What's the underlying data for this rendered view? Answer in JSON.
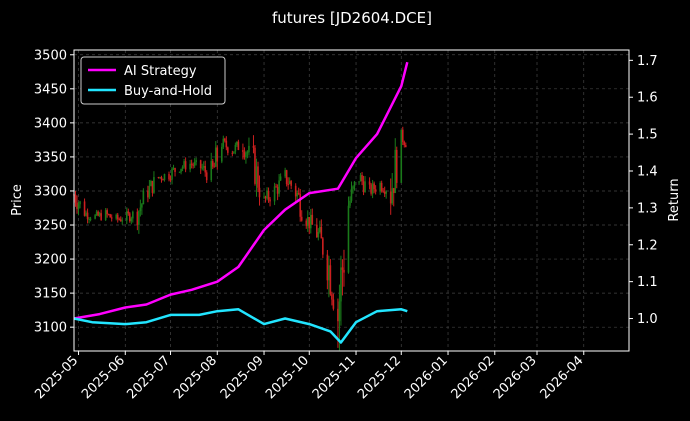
{
  "chart_data": {
    "type": "line",
    "title": "futures [JD2604.DCE]",
    "ylabel_left": "Price",
    "ylabel_right": "Return",
    "xlim": [
      "2025-04-28",
      "2026-05-01"
    ],
    "ylim_left": [
      3065,
      3507
    ],
    "ylim_right": [
      0.912,
      1.728
    ],
    "x_ticks": [
      "2025-05",
      "2025-06",
      "2025-07",
      "2025-08",
      "2025-09",
      "2025-10",
      "2025-11",
      "2025-12",
      "2026-01",
      "2026-02",
      "2026-03",
      "2026-04"
    ],
    "x_tick_dates": [
      "2025-05-01",
      "2025-06-01",
      "2025-07-01",
      "2025-08-01",
      "2025-09-01",
      "2025-10-01",
      "2025-11-01",
      "2025-12-01",
      "2026-01-01",
      "2026-02-01",
      "2026-03-01",
      "2026-04-01"
    ],
    "y_ticks_left": [
      3100,
      3150,
      3200,
      3250,
      3300,
      3350,
      3400,
      3450,
      3500
    ],
    "y_ticks_right": [
      1.0,
      1.1,
      1.2,
      1.3,
      1.4,
      1.5,
      1.6,
      1.7
    ],
    "grid": true,
    "legend_position": "top-left",
    "colors": {
      "background": "#000000",
      "up": "#1a7a1a",
      "down": "#cc1f1f",
      "grid": "#444444",
      "axis": "#ffffff"
    },
    "price_series": [
      {
        "date": "2025-04-28",
        "close": 3295
      },
      {
        "date": "2025-05-05",
        "close": 3268
      },
      {
        "date": "2025-05-12",
        "close": 3262
      },
      {
        "date": "2025-05-19",
        "close": 3265
      },
      {
        "date": "2025-05-26",
        "close": 3258
      },
      {
        "date": "2025-06-02",
        "close": 3262
      },
      {
        "date": "2025-06-09",
        "close": 3268
      },
      {
        "date": "2025-06-16",
        "close": 3300
      },
      {
        "date": "2025-06-23",
        "close": 3320
      },
      {
        "date": "2025-06-30",
        "close": 3325
      },
      {
        "date": "2025-07-07",
        "close": 3335
      },
      {
        "date": "2025-07-14",
        "close": 3340
      },
      {
        "date": "2025-07-21",
        "close": 3335
      },
      {
        "date": "2025-07-28",
        "close": 3320
      },
      {
        "date": "2025-08-04",
        "close": 3370
      },
      {
        "date": "2025-08-11",
        "close": 3360
      },
      {
        "date": "2025-08-18",
        "close": 3370
      },
      {
        "date": "2025-08-25",
        "close": 3340
      },
      {
        "date": "2025-09-01",
        "close": 3285
      },
      {
        "date": "2025-09-08",
        "close": 3300
      },
      {
        "date": "2025-09-15",
        "close": 3320
      },
      {
        "date": "2025-09-22",
        "close": 3300
      },
      {
        "date": "2025-09-29",
        "close": 3260
      },
      {
        "date": "2025-10-06",
        "close": 3240
      },
      {
        "date": "2025-10-13",
        "close": 3200
      },
      {
        "date": "2025-10-20",
        "close": 3120
      },
      {
        "date": "2025-10-27",
        "close": 3280
      },
      {
        "date": "2025-11-03",
        "close": 3320
      },
      {
        "date": "2025-11-10",
        "close": 3300
      },
      {
        "date": "2025-11-17",
        "close": 3310
      },
      {
        "date": "2025-11-24",
        "close": 3300
      },
      {
        "date": "2025-12-01",
        "close": 3380
      },
      {
        "date": "2025-12-05",
        "close": 3370
      }
    ],
    "series": [
      {
        "name": "AI Strategy",
        "color": "#ff00ff",
        "points": [
          {
            "date": "2025-04-28",
            "value": 1.0
          },
          {
            "date": "2025-05-15",
            "value": 1.012
          },
          {
            "date": "2025-06-01",
            "value": 1.03
          },
          {
            "date": "2025-06-15",
            "value": 1.038
          },
          {
            "date": "2025-07-01",
            "value": 1.065
          },
          {
            "date": "2025-07-15",
            "value": 1.078
          },
          {
            "date": "2025-08-01",
            "value": 1.1
          },
          {
            "date": "2025-08-15",
            "value": 1.14
          },
          {
            "date": "2025-09-01",
            "value": 1.24
          },
          {
            "date": "2025-09-15",
            "value": 1.295
          },
          {
            "date": "2025-10-01",
            "value": 1.34
          },
          {
            "date": "2025-10-20",
            "value": 1.352
          },
          {
            "date": "2025-11-01",
            "value": 1.435
          },
          {
            "date": "2025-11-15",
            "value": 1.5
          },
          {
            "date": "2025-12-01",
            "value": 1.63
          },
          {
            "date": "2025-12-05",
            "value": 1.695
          }
        ]
      },
      {
        "name": "Buy-and-Hold",
        "color": "#22e5ff",
        "points": [
          {
            "date": "2025-04-28",
            "value": 1.0
          },
          {
            "date": "2025-05-10",
            "value": 0.99
          },
          {
            "date": "2025-06-01",
            "value": 0.985
          },
          {
            "date": "2025-06-15",
            "value": 0.99
          },
          {
            "date": "2025-07-01",
            "value": 1.01
          },
          {
            "date": "2025-07-20",
            "value": 1.01
          },
          {
            "date": "2025-08-01",
            "value": 1.02
          },
          {
            "date": "2025-08-15",
            "value": 1.025
          },
          {
            "date": "2025-09-01",
            "value": 0.985
          },
          {
            "date": "2025-09-15",
            "value": 1.0
          },
          {
            "date": "2025-10-01",
            "value": 0.985
          },
          {
            "date": "2025-10-15",
            "value": 0.965
          },
          {
            "date": "2025-10-22",
            "value": 0.935
          },
          {
            "date": "2025-11-01",
            "value": 0.99
          },
          {
            "date": "2025-11-15",
            "value": 1.02
          },
          {
            "date": "2025-12-01",
            "value": 1.025
          },
          {
            "date": "2025-12-05",
            "value": 1.02
          }
        ]
      }
    ]
  }
}
